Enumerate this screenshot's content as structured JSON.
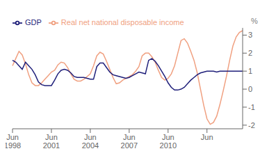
{
  "chart_data": {
    "type": "line",
    "ylabel": "%",
    "categories": [
      "Jun 1998",
      null,
      null,
      null,
      null,
      null,
      null,
      null,
      null,
      null,
      null,
      null,
      "Jun 2001",
      null,
      null,
      null,
      null,
      null,
      null,
      null,
      null,
      null,
      null,
      null,
      "Jun 2004",
      null,
      null,
      null,
      null,
      null,
      null,
      null,
      null,
      null,
      null,
      null,
      "Jun 2007",
      null,
      null,
      null,
      null,
      null,
      null,
      null,
      null,
      null,
      null,
      null,
      "Jun 2010",
      null,
      null,
      null,
      null,
      null,
      null,
      null,
      null,
      null,
      null,
      null,
      "Jun",
      null,
      null,
      null,
      null,
      null,
      null,
      null,
      null,
      null,
      null,
      null
    ],
    "series": [
      {
        "name": "GDP",
        "color": "#1f1f7a",
        "values": [
          1.6,
          1.5,
          1.3,
          1.1,
          1.5,
          1.3,
          1.1,
          0.8,
          0.4,
          0.25,
          0.2,
          0.2,
          0.2,
          0.5,
          0.85,
          1.05,
          1.1,
          1.05,
          0.9,
          0.7,
          0.65,
          0.65,
          0.65,
          0.6,
          0.55,
          0.55,
          1.25,
          1.45,
          1.45,
          1.2,
          0.95,
          0.8,
          0.75,
          0.7,
          0.65,
          0.6,
          0.65,
          0.75,
          0.85,
          0.95,
          0.9,
          0.85,
          1.6,
          1.7,
          1.55,
          1.3,
          1.0,
          0.7,
          0.35,
          0.1,
          -0.05,
          -0.05,
          -0.0,
          0.1,
          0.3,
          0.5,
          0.65,
          0.8,
          0.9,
          0.95,
          1.0,
          1.0,
          1.0,
          0.95,
          1.0,
          1.0,
          1.0,
          1.0,
          1.0,
          1.0,
          1.0,
          1.0
        ]
      },
      {
        "name": "Real net national disposable income",
        "color": "#f0a080",
        "values": [
          1.3,
          1.7,
          2.1,
          1.9,
          1.4,
          0.8,
          0.35,
          0.2,
          0.2,
          0.35,
          0.55,
          0.75,
          0.95,
          1.05,
          1.35,
          1.5,
          1.45,
          1.2,
          0.85,
          0.55,
          0.45,
          0.45,
          0.55,
          0.7,
          0.85,
          1.3,
          1.85,
          2.05,
          1.95,
          1.55,
          1.1,
          0.65,
          0.3,
          0.35,
          0.5,
          0.6,
          0.7,
          0.8,
          1.0,
          1.25,
          1.85,
          2.0,
          2.0,
          1.8,
          1.5,
          1.05,
          0.65,
          0.5,
          0.6,
          0.85,
          1.3,
          2.0,
          2.7,
          2.8,
          2.55,
          2.1,
          1.6,
          0.9,
          0.0,
          -0.9,
          -1.65,
          -1.95,
          -1.85,
          -1.5,
          -0.85,
          -0.1,
          0.7,
          1.6,
          2.4,
          2.9,
          3.15,
          3.25
        ]
      }
    ],
    "ylim": [
      -2.2,
      3.4
    ],
    "yticks": [
      -2,
      -1,
      0,
      1,
      2,
      3
    ],
    "grid": false,
    "legend": "upper left"
  }
}
